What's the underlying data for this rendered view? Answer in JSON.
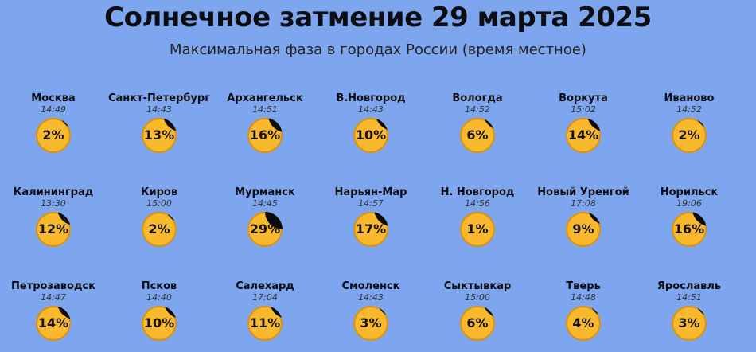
{
  "header": {
    "title": "Солнечное затмение 29 марта 2025",
    "subtitle": "Максимальная фаза в городах России (время местное)"
  },
  "colors": {
    "background": "#7ea6ee",
    "sun": "#f8b92c",
    "moon": "#0b0b0b"
  },
  "cities": [
    {
      "name": "Москва",
      "time": "14:49",
      "phase_label": "2%",
      "phase": 2
    },
    {
      "name": "Санкт-Петербург",
      "time": "14:43",
      "phase_label": "13%",
      "phase": 13
    },
    {
      "name": "Архангельск",
      "time": "14:51",
      "phase_label": "16%",
      "phase": 16
    },
    {
      "name": "В.Новгород",
      "time": "14:43",
      "phase_label": "10%",
      "phase": 10
    },
    {
      "name": "Вологда",
      "time": "14:52",
      "phase_label": "6%",
      "phase": 6
    },
    {
      "name": "Воркута",
      "time": "15:02",
      "phase_label": "14%",
      "phase": 14
    },
    {
      "name": "Иваново",
      "time": "14:52",
      "phase_label": "2%",
      "phase": 2
    },
    {
      "name": "Калининград",
      "time": "13:30",
      "phase_label": "12%",
      "phase": 12
    },
    {
      "name": "Киров",
      "time": "15:00",
      "phase_label": "2%",
      "phase": 2
    },
    {
      "name": "Мурманск",
      "time": "14:45",
      "phase_label": "29%",
      "phase": 29
    },
    {
      "name": "Нарьян-Мар",
      "time": "14:57",
      "phase_label": "17%",
      "phase": 17
    },
    {
      "name": "Н. Новгород",
      "time": "14:56",
      "phase_label": "1%",
      "phase": 1
    },
    {
      "name": "Новый Уренгой",
      "time": "17:08",
      "phase_label": "9%",
      "phase": 9
    },
    {
      "name": "Норильск",
      "time": "19:06",
      "phase_label": "16%",
      "phase": 16
    },
    {
      "name": "Петрозаводск",
      "time": "14:47",
      "phase_label": "14%",
      "phase": 14
    },
    {
      "name": "Псков",
      "time": "14:40",
      "phase_label": "10%",
      "phase": 10
    },
    {
      "name": "Салехард",
      "time": "17:04",
      "phase_label": "11%",
      "phase": 11
    },
    {
      "name": "Смоленск",
      "time": "14:43",
      "phase_label": "3%",
      "phase": 3
    },
    {
      "name": "Сыктывкар",
      "time": "15:00",
      "phase_label": "6%",
      "phase": 6
    },
    {
      "name": "Тверь",
      "time": "14:48",
      "phase_label": "4%",
      "phase": 4
    },
    {
      "name": "Ярославль",
      "time": "14:51",
      "phase_label": "3%",
      "phase": 3
    }
  ]
}
